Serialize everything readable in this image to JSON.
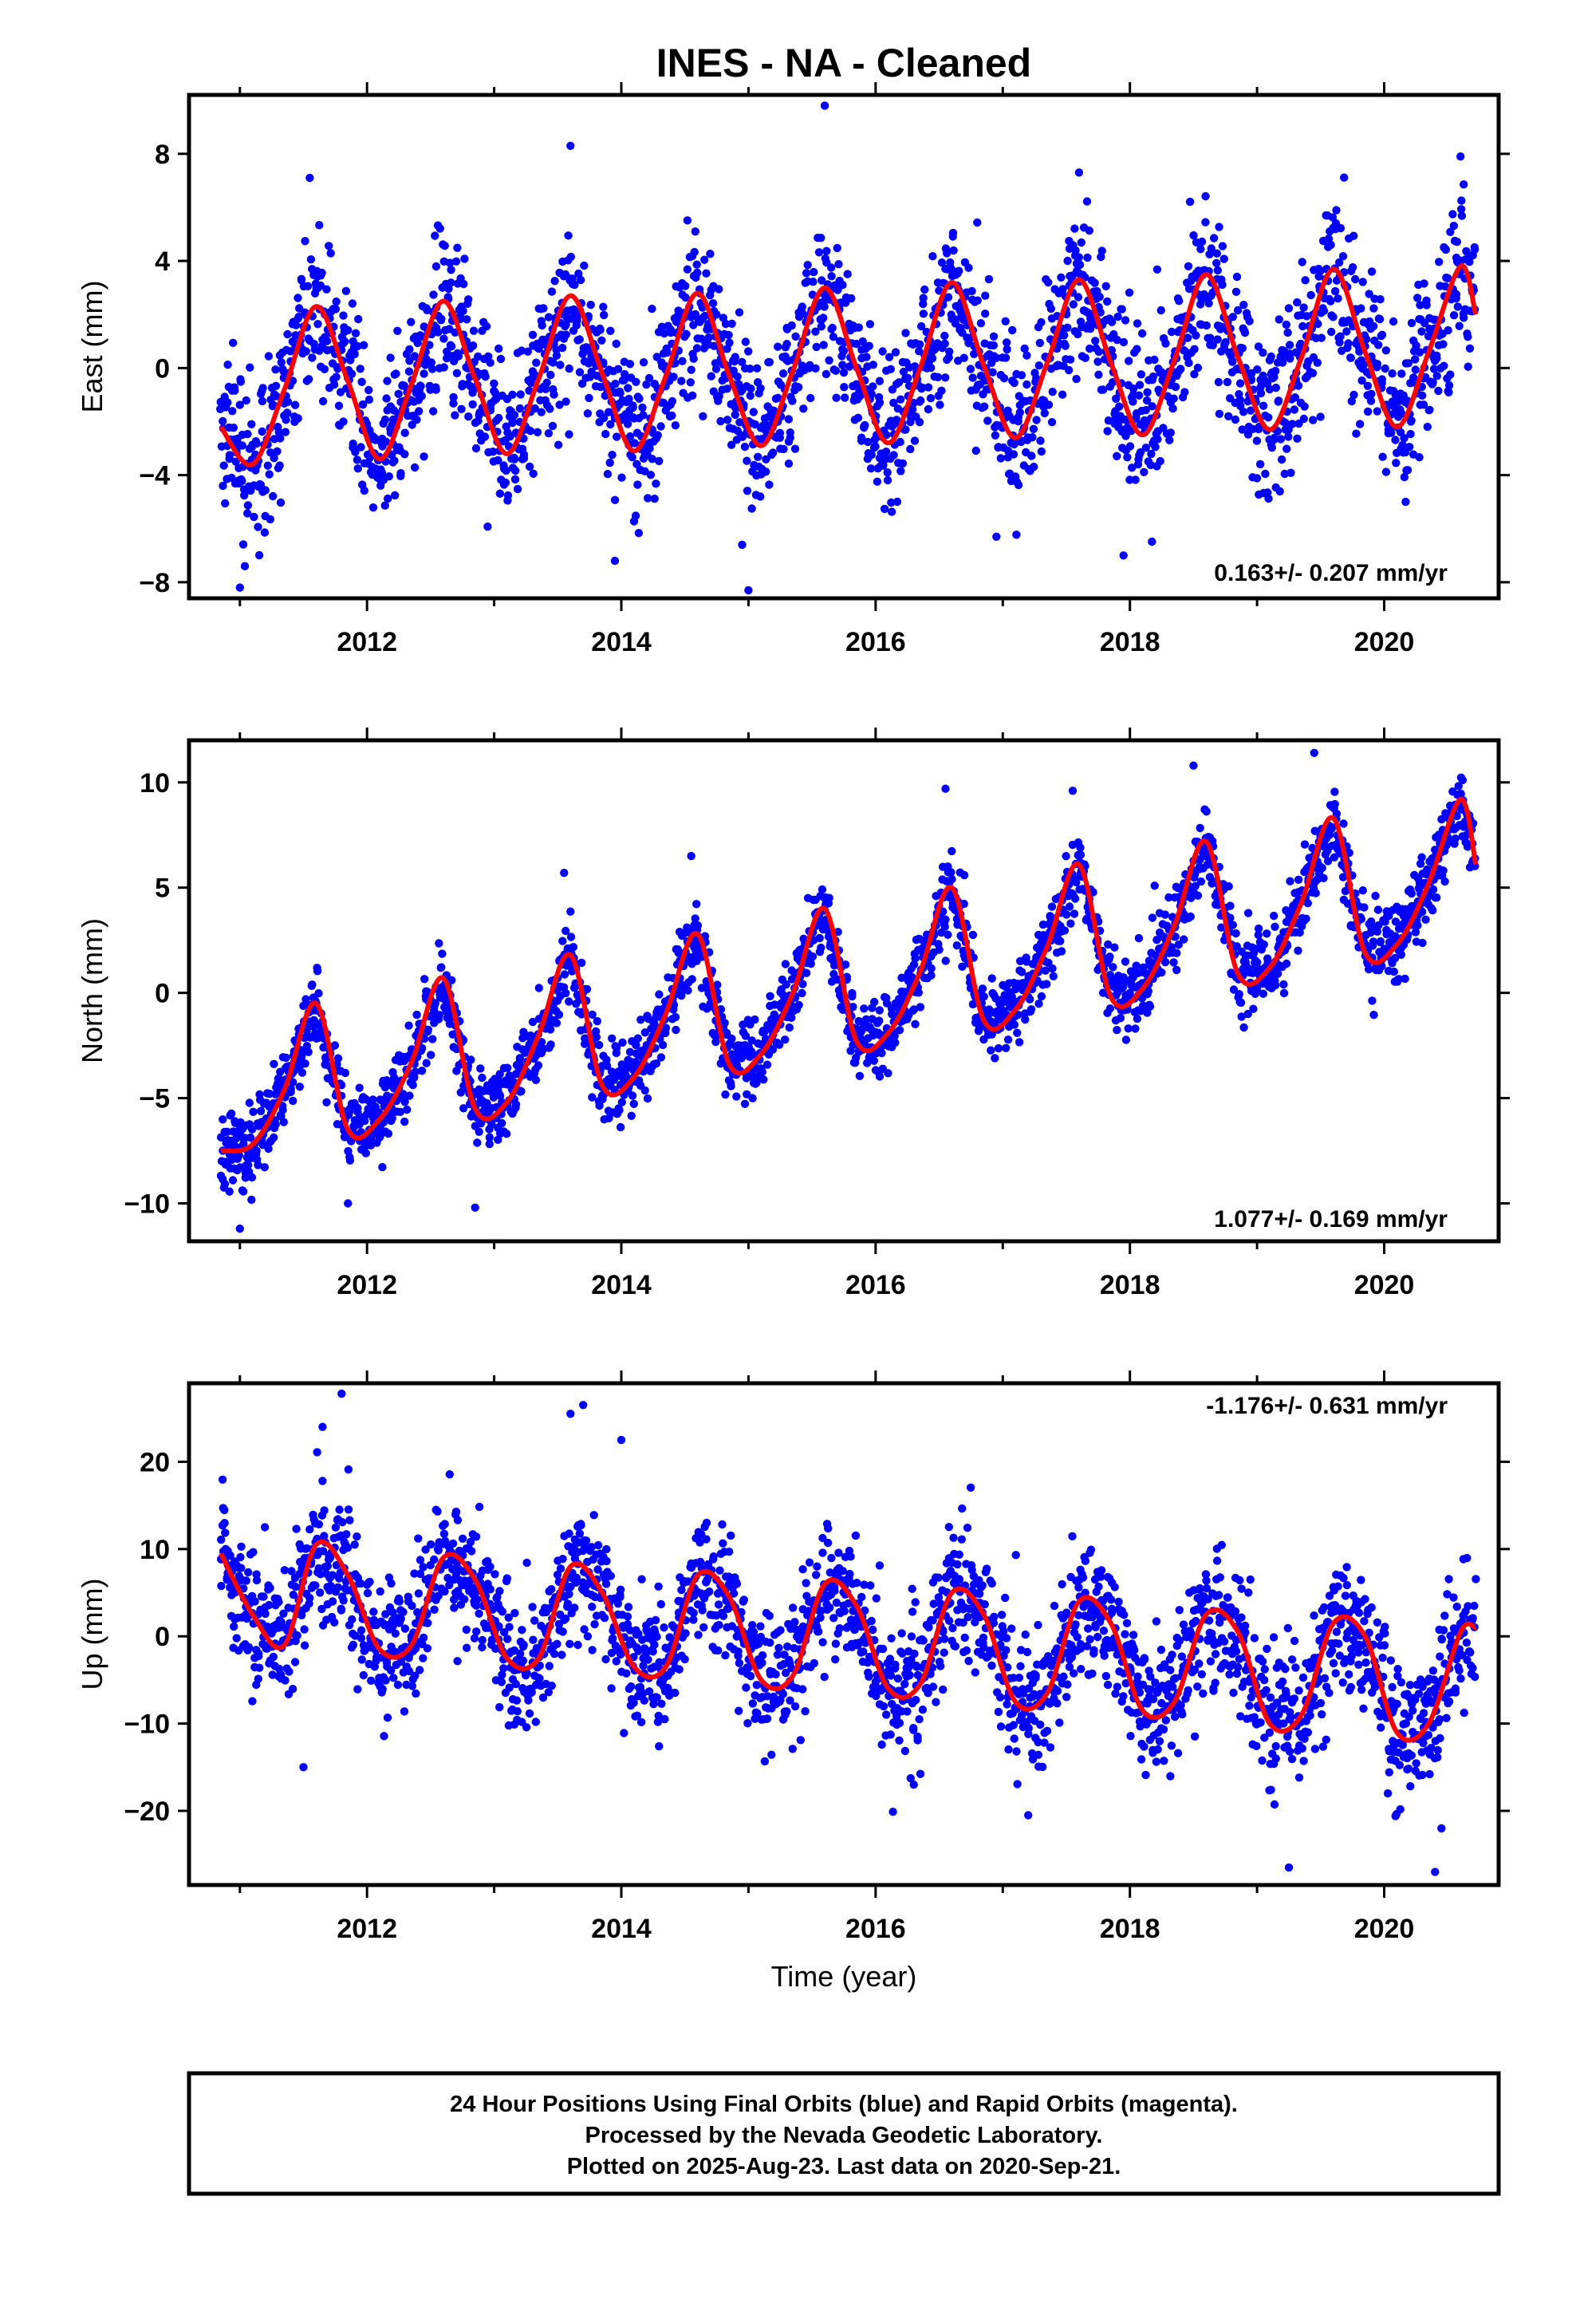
{
  "title": "INES  - NA - Cleaned",
  "xlabel": "Time (year)",
  "footer": [
    "24 Hour Positions Using Final Orbits (blue) and Rapid Orbits (magenta).",
    "Processed by the Nevada Geodetic Laboratory.",
    "Plotted on 2025-Aug-23. Last data on 2020-Sep-21."
  ],
  "colors": {
    "points": "#0000ff",
    "model": "#ff0000",
    "frame": "#000000"
  },
  "chart_data": [
    {
      "type": "scatter",
      "ylabel": "East (mm)",
      "rate": "0.163+/- 0.207 mm/yr",
      "xlim": [
        2010.6,
        2020.9
      ],
      "ylim": [
        -8.6,
        10.2
      ],
      "yticks": [
        8,
        4,
        0,
        -4,
        -8
      ],
      "ytick_labels": [
        "8",
        "4",
        "0",
        "−4",
        "−8"
      ],
      "xticks": [
        2012,
        2014,
        2016,
        2018,
        2020
      ],
      "model": {
        "name": "",
        "x": [
          2010.85,
          2011.1,
          2011.35,
          2011.6,
          2011.85,
          2012.1,
          2012.35,
          2012.6,
          2012.85,
          2013.1,
          2013.35,
          2013.6,
          2013.85,
          2014.1,
          2014.35,
          2014.6,
          2014.85,
          2015.1,
          2015.35,
          2015.6,
          2015.85,
          2016.1,
          2016.35,
          2016.6,
          2016.85,
          2017.1,
          2017.35,
          2017.6,
          2017.85,
          2018.1,
          2018.35,
          2018.6,
          2018.85,
          2019.1,
          2019.35,
          2019.6,
          2019.85,
          2020.1,
          2020.35,
          2020.6,
          2020.72
        ],
        "y": [
          -2.2,
          -3.6,
          -0.8,
          2.3,
          -0.5,
          -3.4,
          -0.6,
          2.5,
          -0.4,
          -3.2,
          -0.4,
          2.7,
          -0.2,
          -3.1,
          -0.3,
          2.8,
          -0.3,
          -2.9,
          -0.1,
          3.0,
          0.0,
          -2.8,
          0.0,
          3.2,
          0.1,
          -2.6,
          0.2,
          3.3,
          0.2,
          -2.5,
          0.3,
          3.5,
          0.4,
          -2.3,
          0.4,
          3.7,
          0.6,
          -2.2,
          0.6,
          3.8,
          2.0
        ]
      },
      "points_note": "",
      "noise_sd": 1.5,
      "outliers": [
        [
          2011.55,
          7.1
        ],
        [
          2013.6,
          8.3
        ],
        [
          2015.6,
          9.8
        ],
        [
          2017.6,
          7.3
        ],
        [
          2020.6,
          7.9
        ],
        [
          2011.0,
          -8.2
        ],
        [
          2015.0,
          -8.3
        ],
        [
          2013.95,
          -7.2
        ],
        [
          2017.95,
          -7.0
        ],
        [
          2014.95,
          -6.6
        ],
        [
          2016.95,
          -6.3
        ]
      ]
    },
    {
      "type": "scatter",
      "ylabel": "North (mm)",
      "rate": "1.077+/- 0.169 mm/yr",
      "xlim": [
        2010.6,
        2020.9
      ],
      "ylim": [
        -11.8,
        12.0
      ],
      "yticks": [
        10,
        5,
        0,
        -5,
        -10
      ],
      "ytick_labels": [
        "10",
        "5",
        "0",
        "−5",
        "−10"
      ],
      "xticks": [
        2012,
        2014,
        2016,
        2018,
        2020
      ],
      "model": {
        "name": "",
        "x": [
          2010.85,
          2011.1,
          2011.35,
          2011.6,
          2011.85,
          2012.1,
          2012.35,
          2012.6,
          2012.85,
          2013.1,
          2013.35,
          2013.6,
          2013.85,
          2014.1,
          2014.35,
          2014.6,
          2014.85,
          2015.1,
          2015.35,
          2015.6,
          2015.85,
          2016.1,
          2016.35,
          2016.6,
          2016.85,
          2017.1,
          2017.35,
          2017.6,
          2017.85,
          2018.1,
          2018.35,
          2018.6,
          2018.85,
          2019.1,
          2019.35,
          2019.6,
          2019.85,
          2020.1,
          2020.35,
          2020.6,
          2020.72
        ],
        "y": [
          -7.5,
          -7.2,
          -4.6,
          -0.5,
          -6.5,
          -6.0,
          -3.3,
          0.7,
          -5.5,
          -5.2,
          -2.0,
          1.8,
          -4.4,
          -4.0,
          -1.0,
          2.8,
          -3.4,
          -2.9,
          0.0,
          4.0,
          -2.3,
          -1.9,
          1.0,
          5.0,
          -1.3,
          -0.8,
          2.2,
          6.1,
          -0.2,
          0.2,
          3.2,
          7.2,
          0.9,
          1.2,
          4.3,
          8.3,
          1.9,
          2.3,
          5.2,
          9.2,
          6.1
        ]
      },
      "points_note": "",
      "noise_sd": 0.9,
      "outliers": [
        [
          2011.85,
          -10.0
        ],
        [
          2012.85,
          -10.2
        ],
        [
          2011.0,
          -11.2
        ],
        [
          2019.45,
          11.4
        ],
        [
          2018.5,
          10.8
        ],
        [
          2016.55,
          9.7
        ],
        [
          2017.55,
          9.6
        ],
        [
          2014.55,
          6.5
        ],
        [
          2013.55,
          5.7
        ]
      ]
    },
    {
      "type": "scatter",
      "ylabel": "Up (mm)",
      "rate": "-1.176+/- 0.631 mm/yr",
      "xlim": [
        2010.6,
        2020.9
      ],
      "ylim": [
        -28.5,
        29.0
      ],
      "yticks": [
        20,
        10,
        0,
        -10,
        -20
      ],
      "ytick_labels": [
        "20",
        "10",
        "0",
        "−10",
        "−20"
      ],
      "xticks": [
        2012,
        2014,
        2016,
        2018,
        2020
      ],
      "model": {
        "name": "",
        "x": [
          2010.85,
          2011.1,
          2011.35,
          2011.6,
          2011.85,
          2012.1,
          2012.35,
          2012.6,
          2012.85,
          2013.1,
          2013.35,
          2013.6,
          2013.85,
          2014.1,
          2014.35,
          2014.6,
          2014.85,
          2015.1,
          2015.35,
          2015.6,
          2015.85,
          2016.1,
          2016.35,
          2016.6,
          2016.85,
          2017.1,
          2017.35,
          2017.6,
          2017.85,
          2018.1,
          2018.35,
          2018.6,
          2018.85,
          2019.1,
          2019.35,
          2019.6,
          2019.85,
          2020.1,
          2020.35,
          2020.6,
          2020.72
        ],
        "y": [
          9.5,
          2.5,
          -1.0,
          10.5,
          7.0,
          -1.5,
          -1.0,
          9.0,
          6.5,
          -2.5,
          -2.5,
          8.0,
          5.0,
          -3.5,
          -3.5,
          7.0,
          4.5,
          -5.0,
          -4.5,
          6.0,
          3.5,
          -6.0,
          -5.5,
          5.0,
          2.5,
          -7.5,
          -6.5,
          4.0,
          1.5,
          -8.5,
          -7.5,
          2.5,
          0.5,
          -10.0,
          -9.0,
          1.5,
          0.0,
          -11.0,
          -10.0,
          0.5,
          1.0
        ]
      },
      "points_note": "",
      "noise_sd": 3.8,
      "outliers": [
        [
          2011.8,
          27.8
        ],
        [
          2013.6,
          25.5
        ],
        [
          2013.7,
          26.5
        ],
        [
          2014.0,
          22.5
        ],
        [
          2011.65,
          24.0
        ],
        [
          2019.25,
          -26.5
        ],
        [
          2020.4,
          -27.0
        ],
        [
          2011.5,
          -15.0
        ],
        [
          2017.2,
          -20.5
        ],
        [
          2016.3,
          -17.0
        ],
        [
          2020.45,
          -22.0
        ]
      ]
    }
  ]
}
